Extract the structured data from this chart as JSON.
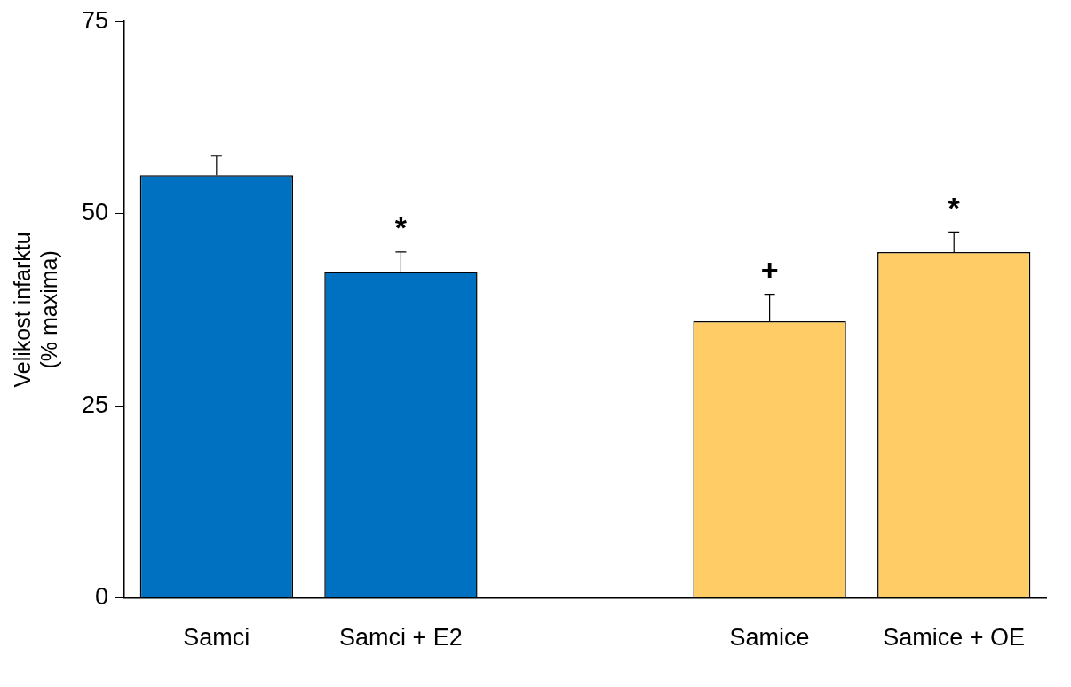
{
  "chart_data": {
    "type": "bar",
    "ylabel": "Velikost infarktu\n(% maxima)",
    "categories": [
      "Samci",
      "Samci + E2",
      null,
      "Samice",
      "Samice + OE"
    ],
    "colors": [
      "#0070c0",
      "#0070c0",
      "#ffffff",
      "#ffcc66",
      "#ffcc66"
    ],
    "values": [
      55,
      42.4,
      null,
      36,
      45
    ],
    "errors": [
      [
        55,
        57.5
      ],
      [
        42.4,
        45
      ],
      null,
      [
        36,
        39.5
      ],
      [
        45,
        47.6
      ]
    ],
    "ylim": [
      0,
      75
    ],
    "yticks": [
      0,
      25,
      50,
      75
    ],
    "grid": false,
    "legend": false,
    "annotations": [
      {
        "text": "*",
        "x": "Samci + E2",
        "y": 45
      },
      {
        "text": "+",
        "x": "Samice",
        "y": 39.5
      },
      {
        "text": "*",
        "x": "Samice + OE",
        "y": 47.6
      }
    ]
  }
}
